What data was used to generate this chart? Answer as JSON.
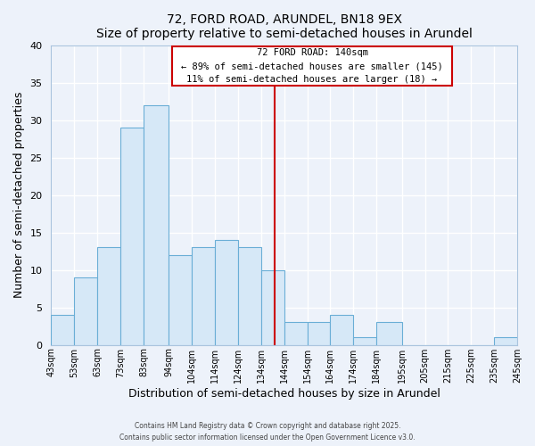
{
  "title": "72, FORD ROAD, ARUNDEL, BN18 9EX",
  "subtitle": "Size of property relative to semi-detached houses in Arundel",
  "xlabel": "Distribution of semi-detached houses by size in Arundel",
  "ylabel": "Number of semi-detached properties",
  "bin_edges": [
    43,
    53,
    63,
    73,
    83,
    94,
    104,
    114,
    124,
    134,
    144,
    154,
    164,
    174,
    184,
    195,
    205,
    215,
    225,
    235,
    245
  ],
  "counts": [
    4,
    9,
    13,
    29,
    32,
    12,
    13,
    14,
    13,
    10,
    3,
    3,
    4,
    1,
    3,
    0,
    0,
    0,
    0,
    1
  ],
  "bar_face_color": "#d6e8f7",
  "bar_edge_color": "#6aaed6",
  "vline_x": 140,
  "vline_color": "#cc0000",
  "annotation_title": "72 FORD ROAD: 140sqm",
  "annotation_line1": "← 89% of semi-detached houses are smaller (145)",
  "annotation_line2": "11% of semi-detached houses are larger (18) →",
  "annotation_box_color": "#cc0000",
  "annotation_text_color": "#000000",
  "ylim": [
    0,
    40
  ],
  "yticks": [
    0,
    5,
    10,
    15,
    20,
    25,
    30,
    35,
    40
  ],
  "background_color": "#edf2fa",
  "grid_color": "#ffffff",
  "footer1": "Contains HM Land Registry data © Crown copyright and database right 2025.",
  "footer2": "Contains public sector information licensed under the Open Government Licence v3.0.",
  "tick_labels": [
    "43sqm",
    "53sqm",
    "63sqm",
    "73sqm",
    "83sqm",
    "94sqm",
    "104sqm",
    "114sqm",
    "124sqm",
    "134sqm",
    "144sqm",
    "154sqm",
    "164sqm",
    "174sqm",
    "184sqm",
    "195sqm",
    "205sqm",
    "215sqm",
    "225sqm",
    "235sqm",
    "245sqm"
  ]
}
